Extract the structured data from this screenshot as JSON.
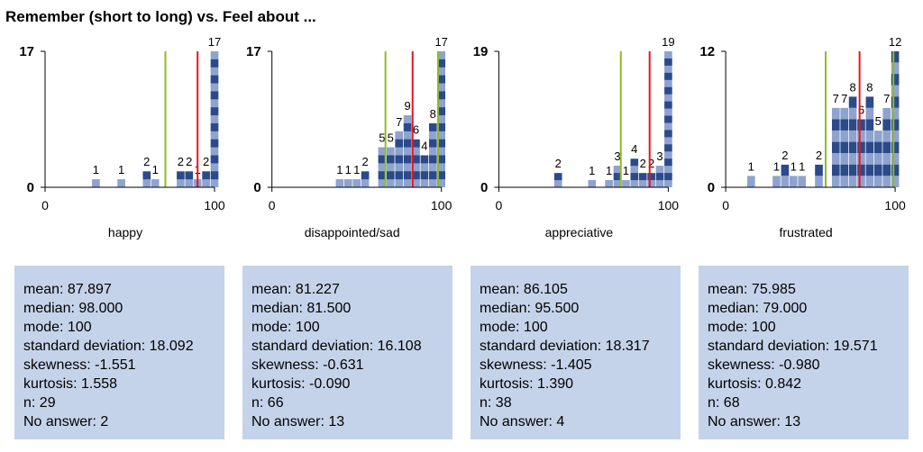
{
  "title": "Remember (short to long) vs. Feel about ...",
  "chart_data": [
    {
      "type": "bar",
      "xlabel": "happy",
      "xlim": [
        0,
        100
      ],
      "xticks": [
        0,
        100
      ],
      "ylim": [
        0,
        17
      ],
      "yticks": [
        0,
        17
      ],
      "color": "#2b4a8a",
      "stripe_color": "#8fa3cf",
      "x": [
        30,
        45,
        60,
        65,
        80,
        85,
        90,
        95,
        100
      ],
      "values": [
        1,
        1,
        2,
        1,
        2,
        2,
        1,
        2,
        17
      ],
      "lines": [
        {
          "value": 71,
          "color": "#8fbc1f"
        },
        {
          "value": 90,
          "color": "#e8141c"
        }
      ]
    },
    {
      "type": "bar",
      "xlabel": "disappointed/sad",
      "xlim": [
        0,
        100
      ],
      "xticks": [
        0,
        100
      ],
      "ylim": [
        0,
        17
      ],
      "yticks": [
        0,
        17
      ],
      "color": "#2b4a8a",
      "stripe_color": "#8fa3cf",
      "x": [
        40,
        45,
        50,
        55,
        65,
        70,
        75,
        80,
        85,
        90,
        95,
        100
      ],
      "values": [
        1,
        1,
        1,
        2,
        5,
        5,
        7,
        9,
        6,
        4,
        8,
        17
      ],
      "lines": [
        {
          "value": 67,
          "color": "#8fbc1f"
        },
        {
          "value": 83,
          "color": "#e8141c"
        },
        {
          "value": 98,
          "color": "#8fbc1f"
        }
      ]
    },
    {
      "type": "bar",
      "xlabel": "appreciative",
      "xlim": [
        0,
        100
      ],
      "xticks": [
        0,
        100
      ],
      "ylim": [
        0,
        19
      ],
      "yticks": [
        0,
        19
      ],
      "color": "#2b4a8a",
      "stripe_color": "#8fa3cf",
      "x": [
        35,
        55,
        65,
        70,
        75,
        80,
        85,
        90,
        95,
        100
      ],
      "values": [
        2,
        1,
        1,
        3,
        1,
        4,
        2,
        2,
        3,
        19
      ],
      "lines": [
        {
          "value": 72,
          "color": "#8fbc1f"
        },
        {
          "value": 89,
          "color": "#e8141c"
        }
      ]
    },
    {
      "type": "bar",
      "xlabel": "frustrated",
      "xlim": [
        0,
        100
      ],
      "xticks": [
        0,
        100
      ],
      "ylim": [
        0,
        12
      ],
      "yticks": [
        0,
        12
      ],
      "color": "#2b4a8a",
      "stripe_color": "#8fa3cf",
      "x": [
        15,
        30,
        35,
        40,
        45,
        55,
        65,
        70,
        75,
        80,
        85,
        90,
        95,
        100
      ],
      "values": [
        1,
        1,
        2,
        1,
        1,
        2,
        7,
        7,
        8,
        6,
        8,
        5,
        7,
        12
      ],
      "lines": [
        {
          "value": 59,
          "color": "#8fbc1f"
        },
        {
          "value": 79,
          "color": "#e8141c"
        },
        {
          "value": 99,
          "color": "#8fbc1f"
        }
      ]
    }
  ],
  "stats": [
    [
      "mean: 87.897",
      "median: 98.000",
      "mode: 100",
      "standard deviation: 18.092",
      "skewness: -1.551",
      "kurtosis: 1.558",
      "n: 29",
      "No answer: 2"
    ],
    [
      "mean: 81.227",
      "median: 81.500",
      "mode: 100",
      "standard deviation: 16.108",
      "skewness: -0.631",
      "kurtosis: -0.090",
      "n: 66",
      "No answer: 13"
    ],
    [
      "mean: 86.105",
      "median: 95.500",
      "mode: 100",
      "standard deviation: 18.317",
      "skewness: -1.405",
      "kurtosis: 1.390",
      "n: 38",
      "No answer: 4"
    ],
    [
      "mean: 75.985",
      "median: 79.000",
      "mode: 100",
      "standard deviation: 19.571",
      "skewness: -0.980",
      "kurtosis: 0.842",
      "n: 68",
      "No answer: 13"
    ]
  ]
}
